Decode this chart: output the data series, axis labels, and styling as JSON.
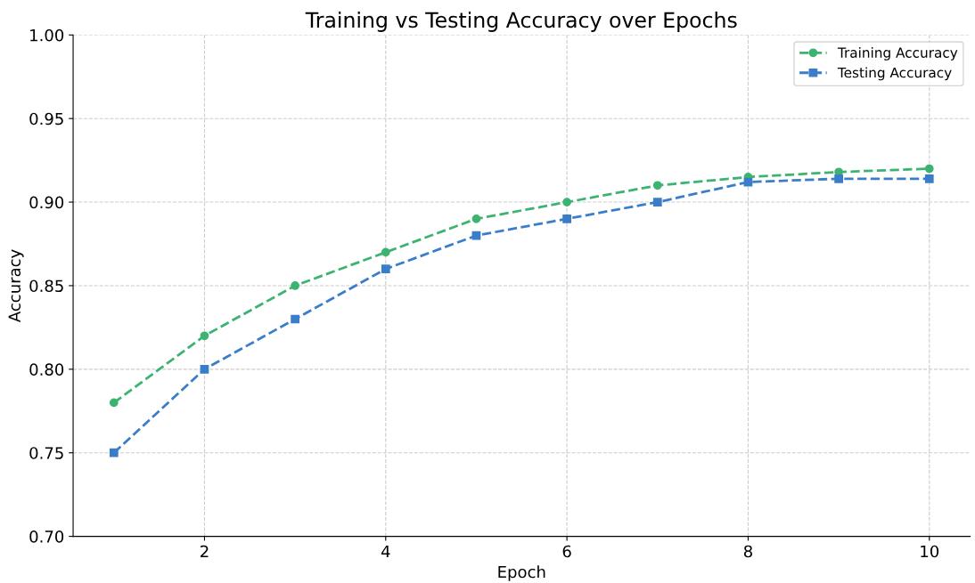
{
  "chart_data": {
    "type": "line",
    "title": "Training vs Testing Accuracy over Epochs",
    "xlabel": "Epoch",
    "ylabel": "Accuracy",
    "x": [
      1,
      2,
      3,
      4,
      5,
      6,
      7,
      8,
      9,
      10
    ],
    "series": [
      {
        "name": "Training Accuracy",
        "color": "#3cb371",
        "marker": "circle",
        "values": [
          0.78,
          0.82,
          0.85,
          0.87,
          0.89,
          0.9,
          0.91,
          0.915,
          0.918,
          0.92
        ]
      },
      {
        "name": "Testing Accuracy",
        "color": "#3a7dc9",
        "marker": "square",
        "values": [
          0.75,
          0.8,
          0.83,
          0.86,
          0.88,
          0.89,
          0.9,
          0.912,
          0.914,
          0.914
        ]
      }
    ],
    "line_style": "dashed",
    "xlim": [
      0.55,
      10.45
    ],
    "xticks": [
      2,
      4,
      6,
      8,
      10
    ],
    "ylim": [
      0.7,
      1.0
    ],
    "yticks": [
      {
        "value": 0.7,
        "label": "0.70"
      },
      {
        "value": 0.75,
        "label": "0.75"
      },
      {
        "value": 0.8,
        "label": "0.80"
      },
      {
        "value": 0.85,
        "label": "0.85"
      },
      {
        "value": 0.9,
        "label": "0.90"
      },
      {
        "value": 0.95,
        "label": "0.95"
      },
      {
        "value": 1.0,
        "label": "1.00"
      }
    ],
    "grid": true,
    "legend": "top right"
  }
}
